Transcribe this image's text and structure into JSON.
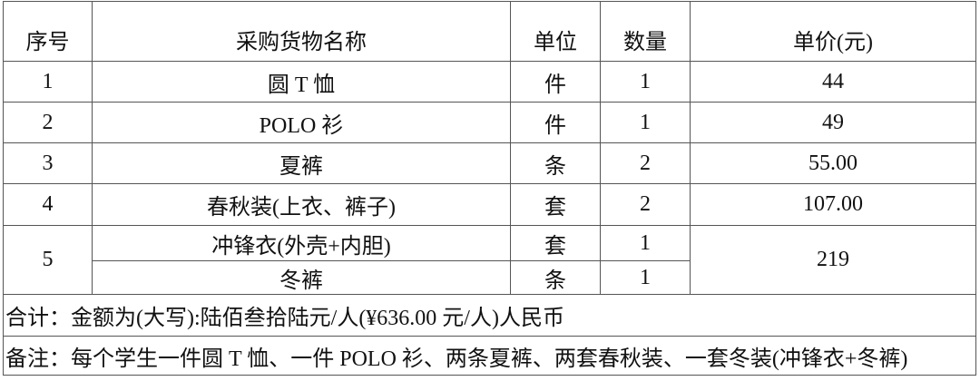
{
  "table": {
    "headers": [
      "序号",
      "采购货物名称",
      "单位",
      "数量",
      "单价(元)"
    ],
    "rows": [
      {
        "no": "1",
        "name": "圆 T 恤",
        "unit": "件",
        "qty": "1",
        "price": "44"
      },
      {
        "no": "2",
        "name": "POLO 衫",
        "unit": "件",
        "qty": "1",
        "price": "49"
      },
      {
        "no": "3",
        "name": "夏裤",
        "unit": "条",
        "qty": "2",
        "price": "55.00"
      },
      {
        "no": "4",
        "name": "春秋装(上衣、裤子)",
        "unit": "套",
        "qty": "2",
        "price": "107.00"
      },
      {
        "no": "5",
        "price": "219",
        "items": [
          {
            "name": "冲锋衣(外壳+内胆)",
            "unit": "套",
            "qty": "1"
          },
          {
            "name": "冬裤",
            "unit": "条",
            "qty": "1"
          }
        ]
      }
    ],
    "total": "合计：金额为(大写):陆佰叁拾陆元/人(¥636.00 元/人)人民币",
    "note": "备注：每个学生一件圆 T 恤、一件 POLO 衫、两条夏裤、两套春秋装、一套冬装(冲锋衣+冬裤)"
  }
}
